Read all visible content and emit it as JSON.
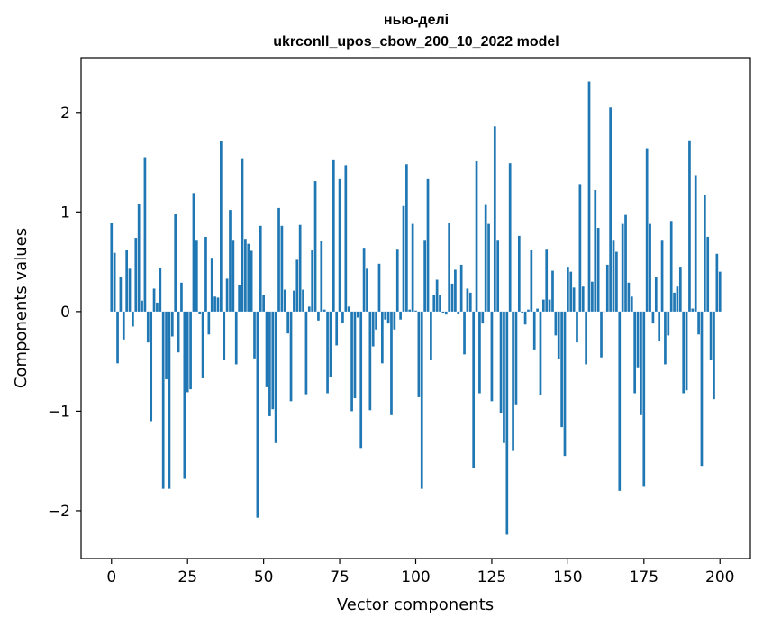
{
  "chart_data": {
    "type": "bar",
    "title": "нью-делі",
    "subtitle": "ukrconll_upos_cbow_200_10_2022 model",
    "xlabel": "Vector components",
    "ylabel": "Components values",
    "xlim": [
      -10,
      210
    ],
    "ylim": [
      -2.48,
      2.55
    ],
    "xticks": [
      0,
      25,
      50,
      75,
      100,
      125,
      150,
      175,
      200
    ],
    "yticks": [
      -2,
      -1,
      0,
      1,
      2
    ],
    "ytick_labels": [
      "−2",
      "−1",
      "0",
      "1",
      "2"
    ],
    "bar_color": "#1f77b4",
    "grid": false,
    "values": [
      0.89,
      0.59,
      -0.52,
      0.35,
      -0.28,
      0.62,
      0.43,
      -0.15,
      0.74,
      1.08,
      0.11,
      1.55,
      -0.31,
      -1.1,
      0.23,
      0.09,
      0.44,
      -1.78,
      -0.68,
      -1.78,
      -0.25,
      0.98,
      -0.41,
      0.29,
      -1.68,
      -0.81,
      -0.78,
      1.19,
      0.72,
      -0.02,
      -0.67,
      0.75,
      -0.23,
      0.54,
      0.15,
      0.14,
      1.71,
      -0.49,
      0.33,
      1.02,
      0.72,
      -0.53,
      0.27,
      1.54,
      0.73,
      0.68,
      0.61,
      -0.47,
      -2.07,
      0.86,
      0.17,
      -0.76,
      -1.05,
      -0.98,
      -1.32,
      1.04,
      0.86,
      0.22,
      -0.22,
      -0.9,
      0.21,
      0.52,
      0.87,
      0.22,
      -0.83,
      0.05,
      0.62,
      1.31,
      -0.09,
      0.71,
      0.02,
      -0.82,
      -0.66,
      1.52,
      -0.34,
      1.33,
      -0.11,
      1.47,
      0.05,
      -1.0,
      -0.87,
      -0.06,
      -1.37,
      0.64,
      0.43,
      -0.99,
      -0.35,
      -0.18,
      0.48,
      -0.52,
      -0.08,
      -0.12,
      -1.04,
      -0.18,
      0.63,
      -0.08,
      1.06,
      1.48,
      0.02,
      0.88,
      0.01,
      -0.86,
      -1.78,
      0.72,
      1.33,
      -0.49,
      0.17,
      0.32,
      0.17,
      -0.01,
      -0.03,
      0.89,
      0.28,
      0.42,
      -0.02,
      0.47,
      -0.43,
      0.23,
      0.19,
      -1.57,
      1.51,
      -0.82,
      -0.12,
      1.07,
      0.88,
      -0.9,
      1.86,
      0.72,
      -1.02,
      -1.32,
      -2.24,
      1.49,
      -1.4,
      -0.94,
      0.76,
      -0.01,
      -0.13,
      0.02,
      0.62,
      -0.38,
      0.03,
      -0.84,
      0.12,
      0.63,
      0.12,
      0.41,
      -0.24,
      -0.48,
      -1.16,
      -1.45,
      0.45,
      0.4,
      0.24,
      -0.31,
      1.28,
      0.25,
      -0.53,
      2.31,
      0.3,
      1.22,
      0.84,
      -0.46,
      0.0,
      0.47,
      2.05,
      0.72,
      0.6,
      -1.8,
      0.88,
      0.97,
      0.29,
      0.15,
      -0.82,
      -0.56,
      -1.04,
      -1.76,
      1.64,
      0.88,
      -0.12,
      0.35,
      -0.3,
      0.72,
      -0.53,
      -0.24,
      0.91,
      0.19,
      0.25,
      0.45,
      -0.82,
      -0.79,
      1.72,
      0.03,
      1.37,
      -0.23,
      -1.55,
      1.17,
      0.75,
      -0.49,
      -0.88,
      0.58,
      0.4
    ]
  }
}
